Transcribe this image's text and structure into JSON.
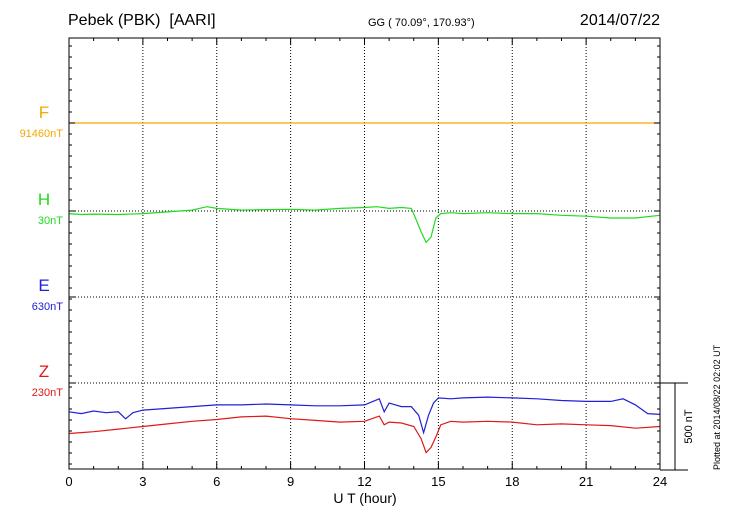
{
  "header": {
    "station": "Pebek (PBK)  [AARI]",
    "coords": "GG ( 70.09°, 170.93°)",
    "date": "2014/07/22"
  },
  "plotted_note": "Plotted at 2014/08/22 02:02 UT",
  "chart_data": {
    "type": "line",
    "xlabel": "U T (hour)",
    "xlim": [
      0,
      24
    ],
    "xticks": [
      0,
      3,
      6,
      9,
      12,
      15,
      18,
      21,
      24
    ],
    "grid": true,
    "scale_bar": {
      "label": "500 nT",
      "value_nT": 500
    },
    "series": [
      {
        "name": "F",
        "base_label": "91460nT",
        "color": "#f5a800",
        "baseline": 91460,
        "x": [
          0,
          6,
          12,
          14,
          15,
          18,
          24
        ],
        "y": [
          91460,
          91460,
          91460,
          91460,
          91460,
          91460,
          91460
        ]
      },
      {
        "name": "H",
        "base_label": "30nT",
        "color": "#1fdc1f",
        "baseline": 30,
        "x": [
          0,
          0.5,
          1,
          2,
          3,
          4,
          5,
          5.6,
          6,
          7,
          8,
          9,
          10,
          11,
          12,
          12.5,
          13,
          13.5,
          13.9,
          14.1,
          14.3,
          14.5,
          14.7,
          14.9,
          15.1,
          15.5,
          16,
          17,
          18,
          19,
          20,
          21,
          22,
          23,
          24
        ],
        "y": [
          15,
          10,
          12,
          10,
          15,
          25,
          35,
          55,
          45,
          35,
          38,
          40,
          35,
          45,
          50,
          55,
          45,
          50,
          45,
          -20,
          -90,
          -150,
          -120,
          -10,
          15,
          20,
          15,
          20,
          15,
          15,
          5,
          0,
          -10,
          -10,
          5
        ]
      },
      {
        "name": "E",
        "base_label": "630nT",
        "color": "#2020d8",
        "baseline": 630,
        "x": [
          0,
          0.5,
          1,
          1.5,
          2,
          2.3,
          2.6,
          3,
          4,
          5,
          6,
          7,
          8,
          9,
          10,
          11,
          12,
          12.6,
          12.8,
          13,
          13.5,
          13.9,
          14.2,
          14.4,
          14.6,
          14.8,
          15,
          15.5,
          16,
          17,
          18,
          19,
          20,
          21,
          22,
          22.5,
          23,
          23.5,
          24
        ],
        "y": [
          -30,
          -40,
          -25,
          -35,
          -30,
          -70,
          -35,
          -20,
          -10,
          0,
          10,
          10,
          15,
          10,
          5,
          5,
          10,
          45,
          -30,
          20,
          0,
          0,
          -50,
          -150,
          -50,
          20,
          50,
          45,
          50,
          55,
          50,
          45,
          35,
          30,
          30,
          45,
          10,
          -40,
          -45
        ]
      },
      {
        "name": "Z",
        "base_label": "230nT",
        "color": "#e01818",
        "baseline": 230,
        "x": [
          0,
          0.5,
          1,
          2,
          3,
          4,
          5,
          6,
          7,
          8,
          9,
          10,
          11,
          12,
          12.6,
          12.8,
          13,
          13.5,
          14.0,
          14.3,
          14.5,
          14.7,
          14.9,
          15.1,
          15.5,
          16,
          17,
          18,
          19,
          20,
          21,
          22,
          23,
          24
        ],
        "y": [
          -60,
          -55,
          -50,
          -35,
          -20,
          -5,
          10,
          20,
          35,
          40,
          25,
          15,
          5,
          10,
          40,
          -10,
          5,
          0,
          -20,
          -90,
          -170,
          -140,
          -80,
          -10,
          10,
          5,
          10,
          5,
          -10,
          -5,
          -10,
          -15,
          -30,
          -20
        ]
      }
    ]
  }
}
